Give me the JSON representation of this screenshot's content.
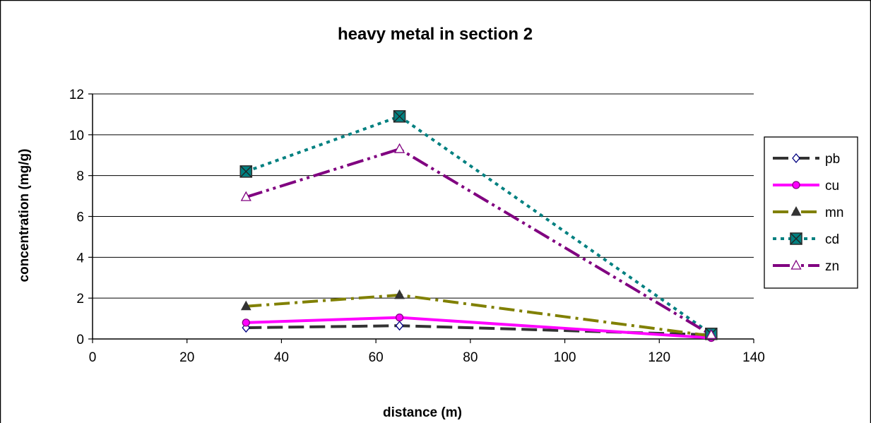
{
  "chart_data": {
    "type": "line",
    "title": "heavy metal in section 2",
    "xlabel": "distance (m)",
    "ylabel": "concentration (mg/g)",
    "xlim": [
      0,
      140
    ],
    "ylim": [
      0,
      12
    ],
    "xticks": [
      0,
      20,
      40,
      60,
      80,
      100,
      120,
      140
    ],
    "yticks": [
      0,
      2,
      4,
      6,
      8,
      10,
      12
    ],
    "grid": "horizontal",
    "legend_position": "right",
    "x": [
      32.5,
      65,
      131
    ],
    "series": [
      {
        "name": "pb",
        "values": [
          0.55,
          0.65,
          0.2
        ],
        "color": "#333333",
        "dash": "long-dash",
        "marker": "diamond-open",
        "marker_color": "#000080"
      },
      {
        "name": "cu",
        "values": [
          0.8,
          1.05,
          0.05
        ],
        "color": "#ff00ff",
        "dash": "solid",
        "marker": "circle",
        "marker_color": "#800080"
      },
      {
        "name": "mn",
        "values": [
          1.6,
          2.15,
          0.15
        ],
        "color": "#808000",
        "dash": "dash-dot",
        "marker": "triangle",
        "marker_color": "#333333"
      },
      {
        "name": "cd",
        "values": [
          8.2,
          10.9,
          0.25
        ],
        "color": "#008080",
        "dash": "dotted",
        "marker": "square-x",
        "marker_color": "#333333"
      },
      {
        "name": "zn",
        "values": [
          6.95,
          9.3,
          0.2
        ],
        "color": "#800080",
        "dash": "dash-dot-dot",
        "marker": "triangle-open",
        "marker_color": "#800080"
      }
    ]
  }
}
